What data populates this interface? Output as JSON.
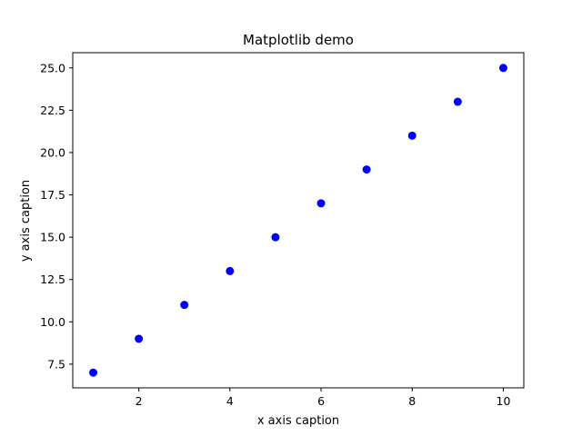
{
  "chart_data": {
    "type": "scatter",
    "title": "Matplotlib demo",
    "xlabel": "x axis caption",
    "ylabel": "y axis caption",
    "x": [
      1,
      2,
      3,
      4,
      5,
      6,
      7,
      8,
      9,
      10
    ],
    "series": [
      {
        "values": [
          7,
          9,
          11,
          13,
          15,
          17,
          19,
          21,
          23,
          25
        ],
        "color": "#0000ff",
        "marker": "circle"
      }
    ],
    "xlim": [
      0.55,
      10.45
    ],
    "ylim": [
      6.1,
      25.9
    ],
    "xticks": [
      2,
      4,
      6,
      8,
      10
    ],
    "xtick_labels": [
      "2",
      "4",
      "6",
      "8",
      "10"
    ],
    "yticks": [
      7.5,
      10.0,
      12.5,
      15.0,
      17.5,
      20.0,
      22.5,
      25.0
    ],
    "ytick_labels": [
      "7.5",
      "10.0",
      "12.5",
      "15.0",
      "17.5",
      "20.0",
      "22.5",
      "25.0"
    ],
    "grid": false,
    "legend": false
  }
}
